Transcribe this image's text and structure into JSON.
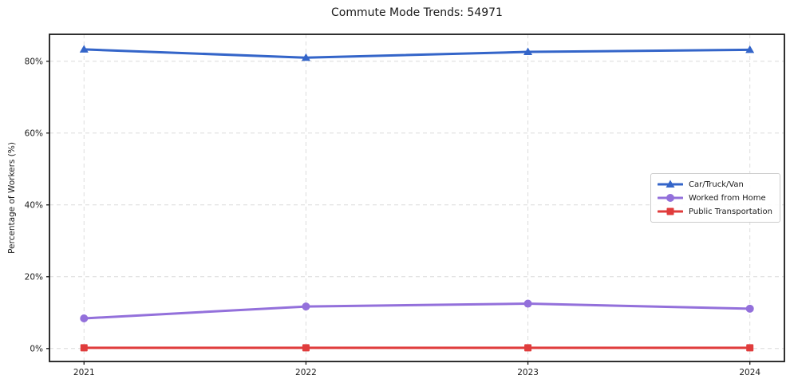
{
  "chart_data": {
    "type": "line",
    "title": "Commute Mode Trends: 54971",
    "ylabel": "Percentage of Workers (%)",
    "xlabel": "",
    "x": [
      "2021",
      "2022",
      "2023",
      "2024"
    ],
    "series": [
      {
        "name": "Car/Truck/Van",
        "values": [
          83.3,
          81.0,
          82.6,
          83.2
        ],
        "color": "#3465c9",
        "marker": "triangle"
      },
      {
        "name": "Worked from Home",
        "values": [
          8.4,
          11.7,
          12.5,
          11.1
        ],
        "color": "#9370db",
        "marker": "circle"
      },
      {
        "name": "Public Transportation",
        "values": [
          0.2,
          0.2,
          0.2,
          0.2
        ],
        "color": "#e03c3c",
        "marker": "square"
      }
    ],
    "yticks": [
      0,
      20,
      40,
      60,
      80
    ],
    "ytick_labels": [
      "0%",
      "20%",
      "40%",
      "60%",
      "80%"
    ],
    "ylim": [
      -3.6,
      87.5
    ],
    "grid": true,
    "grid_color": "#dcdcdc",
    "axis_color": "#1a1a1a",
    "legend_position": "right"
  }
}
